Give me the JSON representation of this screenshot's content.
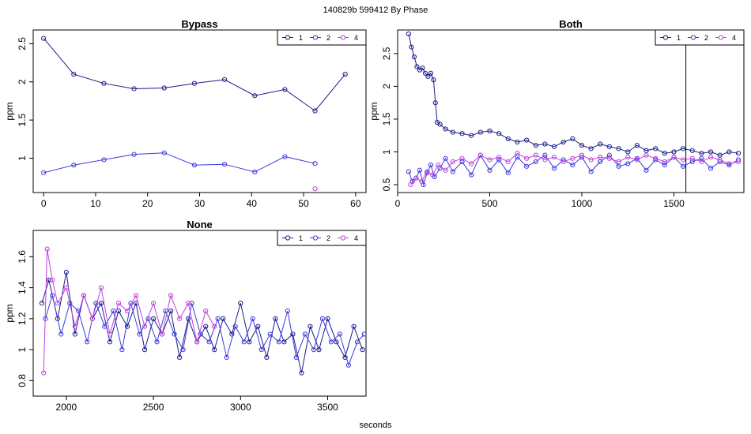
{
  "page": {
    "title": "140829b   599412   By Phase",
    "xlabel": "seconds"
  },
  "colors": {
    "phase1": "#1a1a8c",
    "phase2": "#3a3ae0",
    "phase4": "#c040e0"
  },
  "chart_data": [
    {
      "id": "bypass",
      "type": "line",
      "title": "Bypass",
      "xlabel": "",
      "ylabel": "ppm",
      "xlim": [
        -2,
        62
      ],
      "ylim": [
        0.55,
        2.68
      ],
      "xticks": [
        0,
        10,
        20,
        30,
        40,
        50,
        60
      ],
      "yticks": [
        1.0,
        1.5,
        2.0,
        2.5
      ],
      "legend": {
        "position": "top-right",
        "entries": [
          "1",
          "2",
          "4"
        ]
      },
      "series": [
        {
          "name": "1",
          "color": "#1a1a8c",
          "x": [
            0,
            5.8,
            11.6,
            17.4,
            23.2,
            29,
            34.8,
            40.6,
            46.4,
            52.2,
            58
          ],
          "y": [
            2.57,
            2.1,
            1.98,
            1.91,
            1.92,
            1.98,
            2.03,
            1.82,
            1.9,
            1.62,
            2.1
          ]
        },
        {
          "name": "2",
          "color": "#3a3ae0",
          "x": [
            0,
            5.8,
            11.6,
            17.4,
            23.2,
            29,
            34.8,
            40.6,
            46.4,
            52.2
          ],
          "y": [
            0.81,
            0.91,
            0.98,
            1.05,
            1.07,
            0.91,
            0.92,
            0.82,
            1.02,
            0.93
          ]
        },
        {
          "name": "4",
          "color": "#c040e0",
          "x": [
            52.2
          ],
          "y": [
            0.6
          ]
        }
      ]
    },
    {
      "id": "both",
      "type": "line",
      "title": "Both",
      "xlabel": "",
      "ylabel": "ppm",
      "xlim": [
        0,
        1880
      ],
      "ylim": [
        0.38,
        2.86
      ],
      "xticks": [
        0,
        500,
        1000,
        1500
      ],
      "yticks": [
        0.5,
        1.0,
        1.5,
        2.0,
        2.5
      ],
      "legend": {
        "position": "top-right",
        "entries": [
          "1",
          "2",
          "4"
        ]
      },
      "annotations": [
        {
          "type": "vline",
          "x": 1565
        }
      ],
      "series": [
        {
          "name": "1",
          "color": "#1a1a8c",
          "x": [
            60,
            75,
            90,
            105,
            120,
            135,
            150,
            165,
            180,
            195,
            205,
            215,
            230,
            260,
            300,
            350,
            400,
            450,
            500,
            550,
            600,
            650,
            700,
            750,
            800,
            850,
            900,
            950,
            1000,
            1050,
            1100,
            1150,
            1200,
            1250,
            1300,
            1350,
            1400,
            1450,
            1500,
            1550,
            1600,
            1650,
            1700,
            1750,
            1800,
            1850
          ],
          "y": [
            2.8,
            2.6,
            2.45,
            2.3,
            2.25,
            2.28,
            2.2,
            2.15,
            2.2,
            2.1,
            1.75,
            1.45,
            1.42,
            1.35,
            1.3,
            1.28,
            1.25,
            1.3,
            1.32,
            1.28,
            1.2,
            1.15,
            1.18,
            1.1,
            1.12,
            1.08,
            1.15,
            1.2,
            1.1,
            1.05,
            1.12,
            1.08,
            1.05,
            1.0,
            1.1,
            1.02,
            1.05,
            0.98,
            1.0,
            1.05,
            1.02,
            0.98,
            1.0,
            0.95,
            1.0,
            0.98
          ]
        },
        {
          "name": "2",
          "color": "#3a3ae0",
          "x": [
            60,
            80,
            100,
            120,
            140,
            160,
            180,
            200,
            230,
            260,
            300,
            350,
            400,
            450,
            500,
            550,
            600,
            650,
            700,
            750,
            800,
            850,
            900,
            950,
            1000,
            1050,
            1100,
            1150,
            1200,
            1250,
            1300,
            1350,
            1400,
            1450,
            1500,
            1550,
            1600,
            1650,
            1700,
            1750,
            1800,
            1850
          ],
          "y": [
            0.7,
            0.55,
            0.6,
            0.72,
            0.5,
            0.68,
            0.8,
            0.62,
            0.75,
            0.9,
            0.7,
            0.85,
            0.65,
            0.95,
            0.72,
            0.88,
            0.68,
            0.92,
            0.78,
            0.85,
            0.95,
            0.75,
            0.88,
            0.8,
            0.92,
            0.7,
            0.85,
            0.95,
            0.78,
            0.82,
            0.9,
            0.72,
            0.88,
            0.8,
            0.92,
            0.78,
            0.85,
            0.9,
            0.75,
            0.85,
            0.8,
            0.88
          ]
        },
        {
          "name": "4",
          "color": "#c040e0",
          "x": [
            70,
            100,
            130,
            160,
            190,
            220,
            260,
            300,
            350,
            400,
            450,
            500,
            550,
            600,
            650,
            700,
            750,
            800,
            850,
            900,
            950,
            1000,
            1050,
            1100,
            1150,
            1200,
            1250,
            1300,
            1350,
            1400,
            1450,
            1500,
            1550,
            1600,
            1650,
            1700,
            1750,
            1800,
            1850
          ],
          "y": [
            0.5,
            0.6,
            0.55,
            0.7,
            0.65,
            0.8,
            0.72,
            0.85,
            0.9,
            0.82,
            0.95,
            0.88,
            0.92,
            0.85,
            0.98,
            0.9,
            0.95,
            0.88,
            0.92,
            0.85,
            0.9,
            0.95,
            0.88,
            0.92,
            0.9,
            0.85,
            0.92,
            0.88,
            0.95,
            0.9,
            0.85,
            0.92,
            0.88,
            0.9,
            0.85,
            0.92,
            0.88,
            0.82,
            0.85
          ]
        }
      ]
    },
    {
      "id": "none",
      "type": "line",
      "title": "None",
      "xlabel": "",
      "ylabel": "ppm",
      "xlim": [
        1810,
        3720
      ],
      "ylim": [
        0.7,
        1.77
      ],
      "xticks": [
        2000,
        2500,
        3000,
        3500
      ],
      "yticks": [
        0.8,
        1.0,
        1.2,
        1.4,
        1.6
      ],
      "legend": {
        "position": "top-right",
        "entries": [
          "1",
          "2",
          "4"
        ]
      },
      "series": [
        {
          "name": "1",
          "color": "#1a1a8c",
          "x": [
            1860,
            1900,
            1950,
            2000,
            2050,
            2100,
            2150,
            2200,
            2250,
            2300,
            2350,
            2400,
            2450,
            2500,
            2550,
            2600,
            2650,
            2700,
            2750,
            2800,
            2850,
            2900,
            2950,
            3000,
            3050,
            3100,
            3150,
            3200,
            3250,
            3300,
            3350,
            3400,
            3450,
            3500,
            3550,
            3600,
            3650,
            3700
          ],
          "y": [
            1.3,
            1.45,
            1.2,
            1.5,
            1.1,
            1.35,
            1.2,
            1.3,
            1.05,
            1.25,
            1.15,
            1.3,
            1.0,
            1.2,
            1.1,
            1.25,
            0.95,
            1.2,
            1.05,
            1.15,
            1.0,
            1.2,
            1.1,
            1.3,
            1.05,
            1.15,
            0.95,
            1.2,
            1.05,
            1.1,
            0.85,
            1.15,
            1.0,
            1.2,
            1.05,
            0.95,
            1.15,
            1.0
          ]
        },
        {
          "name": "2",
          "color": "#3a3ae0",
          "x": [
            1880,
            1920,
            1970,
            2020,
            2070,
            2120,
            2170,
            2220,
            2270,
            2320,
            2370,
            2420,
            2470,
            2520,
            2570,
            2620,
            2670,
            2720,
            2770,
            2820,
            2870,
            2920,
            2970,
            3020,
            3070,
            3120,
            3170,
            3220,
            3270,
            3320,
            3370,
            3420,
            3470,
            3520,
            3570,
            3620,
            3670,
            3710
          ],
          "y": [
            1.2,
            1.35,
            1.1,
            1.3,
            1.25,
            1.05,
            1.3,
            1.15,
            1.25,
            1.0,
            1.3,
            1.1,
            1.2,
            1.05,
            1.25,
            1.1,
            1.0,
            1.3,
            1.1,
            1.05,
            1.2,
            0.95,
            1.15,
            1.05,
            1.2,
            1.0,
            1.1,
            1.05,
            1.25,
            0.95,
            1.1,
            1.0,
            1.2,
            1.05,
            1.1,
            0.9,
            1.05,
            1.1
          ]
        },
        {
          "name": "4",
          "color": "#c040e0",
          "x": [
            1870,
            1890,
            1920,
            1950,
            2000,
            2050,
            2100,
            2150,
            2200,
            2250,
            2300,
            2350,
            2400,
            2450,
            2500,
            2550,
            2600,
            2650,
            2700,
            2750,
            2800,
            2850
          ],
          "y": [
            0.85,
            1.65,
            1.45,
            1.3,
            1.4,
            1.15,
            1.35,
            1.2,
            1.4,
            1.1,
            1.3,
            1.25,
            1.35,
            1.15,
            1.3,
            1.1,
            1.35,
            1.2,
            1.3,
            1.05,
            1.25,
            1.15
          ]
        }
      ]
    }
  ]
}
